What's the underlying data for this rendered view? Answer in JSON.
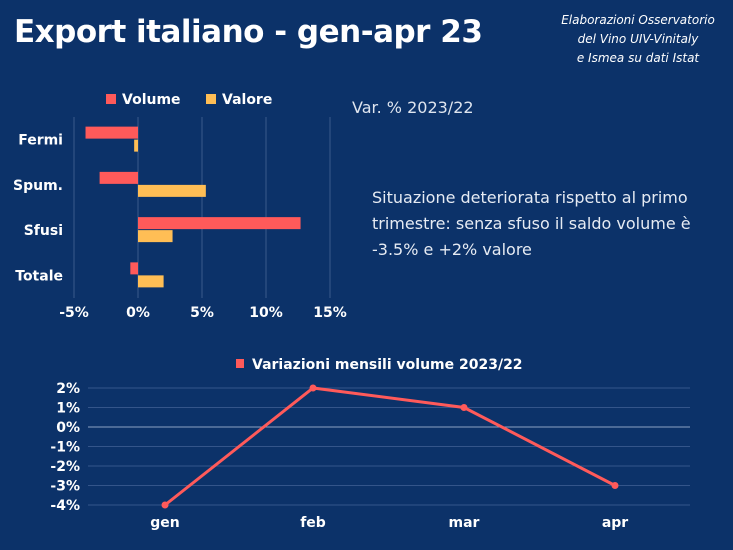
{
  "title": "Export italiano - gen-apr 23",
  "credit": [
    "Elaborazioni Osservatorio",
    "del Vino UIV-Vinitaly",
    "e Ismea su dati Istat"
  ],
  "var_label": "Var. % 2023/22",
  "note": "Situazione deteriorata rispetto al primo trimestre: senza sfuso il saldo volume è -3.5% e +2% valore",
  "chart_data": [
    {
      "type": "bar",
      "orientation": "horizontal",
      "categories": [
        "Fermi",
        "Spum.",
        "Sfusi",
        "Totale"
      ],
      "series": [
        {
          "name": "Volume",
          "color": "#ff5a5a",
          "values": [
            -4.1,
            -3.0,
            12.7,
            -0.6
          ]
        },
        {
          "name": "Valore",
          "color": "#ffbe55",
          "values": [
            -0.3,
            5.3,
            2.7,
            2.0
          ]
        }
      ],
      "xlim": [
        -5,
        15
      ],
      "xticks": [
        "-5%",
        "0%",
        "5%",
        "10%",
        "15%"
      ],
      "grid": true,
      "legend": "top"
    },
    {
      "type": "line",
      "title": "Variazioni mensili volume 2023/22",
      "categories": [
        "gen",
        "feb",
        "mar",
        "apr"
      ],
      "series": [
        {
          "name": "Variazioni mensili volume 2023/22",
          "color": "#ff5a5a",
          "values": [
            -4,
            2,
            1,
            -3
          ]
        }
      ],
      "ylim": [
        -4,
        2
      ],
      "yticks": [
        "2%",
        "1%",
        "0%",
        "-1%",
        "-2%",
        "-3%",
        "-4%"
      ],
      "grid": true,
      "legend": "top"
    }
  ]
}
